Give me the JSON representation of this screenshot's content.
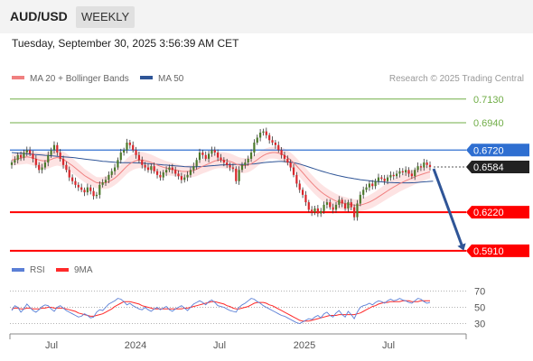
{
  "header": {
    "symbol": "AUD/USD",
    "timeframe": "WEEKLY",
    "datetime": "Tuesday, September 30, 2025 3:56:39 AM CET"
  },
  "legend": {
    "ma20": "MA 20 + Bollinger Bands",
    "ma50": "MA 50",
    "credit": "Research © 2025 Trading Central"
  },
  "rsi_legend": {
    "rsi": "RSI",
    "ma9": "9MA"
  },
  "colors": {
    "bull": "#4c7a2c",
    "bear": "#d9262b",
    "ma20": "#f08080",
    "band": "#fde3e3",
    "ma50": "#2f5597",
    "support": "#ff0000",
    "resistance_green": "#70ad47",
    "pivot_blue": "#2f6fd1",
    "price_tag": "#222222",
    "arrow": "#2f5597",
    "rsi_line": "#5b7fd6",
    "rsi_ma": "#ff2a2a"
  },
  "levels": [
    {
      "value": 0.713,
      "label": "0.7130",
      "kind": "resistance_green"
    },
    {
      "value": 0.694,
      "label": "0.6940",
      "kind": "resistance_green"
    },
    {
      "value": 0.672,
      "label": "0.6720",
      "kind": "pivot_blue"
    },
    {
      "value": 0.6584,
      "label": "0.6584",
      "kind": "price_tag"
    },
    {
      "value": 0.622,
      "label": "0.6220",
      "kind": "support"
    },
    {
      "value": 0.591,
      "label": "0.5910",
      "kind": "support"
    }
  ],
  "chart_data": [
    {
      "type": "candlestick",
      "title": "AUD/USD WEEKLY",
      "x_tick_labels": [
        "Jul",
        "2024",
        "Jul",
        "2025",
        "Jul"
      ],
      "ylim": [
        0.588,
        0.723
      ],
      "last_price": 0.6584,
      "projection": {
        "from": 0.6584,
        "to": 0.591
      },
      "closes": [
        0.662,
        0.664,
        0.668,
        0.666,
        0.67,
        0.672,
        0.669,
        0.665,
        0.66,
        0.656,
        0.658,
        0.662,
        0.668,
        0.672,
        0.676,
        0.67,
        0.665,
        0.66,
        0.656,
        0.65,
        0.647,
        0.644,
        0.642,
        0.64,
        0.638,
        0.642,
        0.639,
        0.635,
        0.636,
        0.644,
        0.646,
        0.648,
        0.652,
        0.655,
        0.658,
        0.664,
        0.67,
        0.672,
        0.678,
        0.676,
        0.672,
        0.668,
        0.664,
        0.66,
        0.658,
        0.656,
        0.659,
        0.655,
        0.652,
        0.65,
        0.654,
        0.656,
        0.658,
        0.656,
        0.653,
        0.651,
        0.648,
        0.65,
        0.652,
        0.656,
        0.659,
        0.664,
        0.67,
        0.668,
        0.665,
        0.669,
        0.672,
        0.67,
        0.666,
        0.664,
        0.662,
        0.66,
        0.658,
        0.657,
        0.647,
        0.656,
        0.66,
        0.662,
        0.665,
        0.67,
        0.678,
        0.682,
        0.686,
        0.687,
        0.684,
        0.68,
        0.678,
        0.676,
        0.672,
        0.668,
        0.665,
        0.662,
        0.658,
        0.652,
        0.645,
        0.64,
        0.636,
        0.63,
        0.624,
        0.622,
        0.625,
        0.621,
        0.623,
        0.628,
        0.63,
        0.626,
        0.624,
        0.628,
        0.632,
        0.629,
        0.625,
        0.63,
        0.626,
        0.618,
        0.629,
        0.636,
        0.64,
        0.642,
        0.645,
        0.643,
        0.647,
        0.65,
        0.649,
        0.647,
        0.65,
        0.652,
        0.651,
        0.653,
        0.655,
        0.654,
        0.656,
        0.653,
        0.651,
        0.656,
        0.659,
        0.658,
        0.662,
        0.66,
        0.6584
      ],
      "ma20": [
        0.664,
        0.6645,
        0.665,
        0.6655,
        0.666,
        0.6665,
        0.6662,
        0.6655,
        0.6648,
        0.664,
        0.6635,
        0.6632,
        0.6636,
        0.6645,
        0.6655,
        0.666,
        0.6655,
        0.6645,
        0.663,
        0.6612,
        0.6595,
        0.6575,
        0.6555,
        0.6535,
        0.6515,
        0.65,
        0.6485,
        0.647,
        0.6458,
        0.6455,
        0.6455,
        0.6458,
        0.6465,
        0.6478,
        0.6495,
        0.6515,
        0.654,
        0.6565,
        0.659,
        0.661,
        0.6625,
        0.6635,
        0.664,
        0.664,
        0.6635,
        0.6628,
        0.662,
        0.661,
        0.66,
        0.659,
        0.6582,
        0.6575,
        0.657,
        0.6565,
        0.656,
        0.6555,
        0.655,
        0.6548,
        0.6548,
        0.655,
        0.6556,
        0.6565,
        0.6578,
        0.659,
        0.66,
        0.661,
        0.6622,
        0.6632,
        0.6638,
        0.664,
        0.6638,
        0.6634,
        0.6628,
        0.662,
        0.6608,
        0.66,
        0.6595,
        0.6595,
        0.66,
        0.661,
        0.6625,
        0.6642,
        0.666,
        0.6676,
        0.6688,
        0.6696,
        0.67,
        0.67,
        0.6696,
        0.6688,
        0.6676,
        0.666,
        0.664,
        0.6618,
        0.6592,
        0.6565,
        0.6538,
        0.651,
        0.6482,
        0.6455,
        0.643,
        0.6406,
        0.6385,
        0.6366,
        0.635,
        0.6335,
        0.6322,
        0.631,
        0.6302,
        0.6296,
        0.629,
        0.6286,
        0.6282,
        0.6278,
        0.6276,
        0.6278,
        0.6284,
        0.6292,
        0.6302,
        0.6314,
        0.6328,
        0.6344,
        0.636,
        0.6376,
        0.6392,
        0.6408,
        0.6422,
        0.6436,
        0.645,
        0.6462,
        0.6474,
        0.6484,
        0.6494,
        0.6504,
        0.6514,
        0.6522,
        0.653,
        0.6538,
        0.6545
      ],
      "ma50": [
        0.67,
        0.6698,
        0.6696,
        0.6694,
        0.6692,
        0.669,
        0.6688,
        0.6686,
        0.6684,
        0.6682,
        0.668,
        0.6678,
        0.6676,
        0.6674,
        0.6672,
        0.667,
        0.6668,
        0.6666,
        0.6664,
        0.6662,
        0.666,
        0.6657,
        0.6654,
        0.6651,
        0.6648,
        0.6645,
        0.6642,
        0.6639,
        0.6636,
        0.6633,
        0.663,
        0.6628,
        0.6626,
        0.6624,
        0.6622,
        0.662,
        0.6619,
        0.6618,
        0.6618,
        0.6618,
        0.6618,
        0.6617,
        0.6616,
        0.6615,
        0.6613,
        0.6611,
        0.6609,
        0.6607,
        0.6605,
        0.6603,
        0.6601,
        0.6599,
        0.6597,
        0.6595,
        0.6593,
        0.6591,
        0.6589,
        0.6587,
        0.6586,
        0.6585,
        0.6585,
        0.6586,
        0.6587,
        0.6588,
        0.659,
        0.6592,
        0.6594,
        0.6596,
        0.6598,
        0.66,
        0.6601,
        0.6602,
        0.6603,
        0.6604,
        0.6604,
        0.6604,
        0.6604,
        0.6604,
        0.6605,
        0.6607,
        0.6609,
        0.6612,
        0.6615,
        0.6618,
        0.6621,
        0.6623,
        0.6625,
        0.6627,
        0.6628,
        0.6628,
        0.6627,
        0.6625,
        0.6622,
        0.6618,
        0.6613,
        0.6607,
        0.66,
        0.6592,
        0.6584,
        0.6576,
        0.6568,
        0.656,
        0.6552,
        0.6545,
        0.6538,
        0.6531,
        0.6525,
        0.6519,
        0.6513,
        0.6508,
        0.6503,
        0.6498,
        0.6494,
        0.649,
        0.6486,
        0.6482,
        0.6479,
        0.6476,
        0.6473,
        0.647,
        0.6468,
        0.6466,
        0.6464,
        0.6462,
        0.646,
        0.6459,
        0.6458,
        0.6457,
        0.6456,
        0.6456,
        0.6456,
        0.6456,
        0.6457,
        0.6458,
        0.646,
        0.6462,
        0.6464,
        0.6466,
        0.6468,
        0.647
      ]
    },
    {
      "type": "line",
      "title": "RSI",
      "ylim": [
        25,
        75
      ],
      "y_tick_labels": [
        "70",
        "50",
        "30"
      ],
      "series_names": [
        "RSI",
        "9MA"
      ],
      "rsi": [
        46,
        52,
        50,
        44,
        48,
        54,
        50,
        46,
        44,
        47,
        51,
        53,
        52,
        48,
        45,
        50,
        52,
        49,
        46,
        44,
        42,
        40,
        38,
        39,
        42,
        40,
        37,
        38,
        44,
        47,
        46,
        50,
        54,
        56,
        58,
        61,
        60,
        57,
        53,
        55,
        52,
        50,
        48,
        47,
        50,
        47,
        45,
        48,
        50,
        47,
        49,
        51,
        47,
        45,
        48,
        50,
        52,
        49,
        46,
        50,
        54,
        56,
        58,
        56,
        53,
        57,
        59,
        56,
        52,
        51,
        50,
        48,
        46,
        45,
        44,
        50,
        53,
        55,
        58,
        61,
        60,
        57,
        55,
        52,
        50,
        48,
        46,
        44,
        42,
        40,
        39,
        37,
        35,
        33,
        31,
        30,
        32,
        34,
        36,
        35,
        38,
        40,
        37,
        42,
        44,
        40,
        38,
        43,
        46,
        41,
        38,
        45,
        41,
        36,
        44,
        50,
        52,
        53,
        55,
        53,
        56,
        58,
        57,
        55,
        58,
        60,
        58,
        59,
        61,
        59,
        58,
        56,
        55,
        58,
        61,
        60,
        57,
        55,
        56
      ],
      "rsi_ma": [
        48,
        49,
        49,
        48,
        48,
        49,
        49,
        48,
        48,
        48,
        49,
        49,
        50,
        50,
        49,
        49,
        49,
        49,
        48,
        47,
        46,
        45,
        43,
        42,
        41,
        40,
        39,
        39,
        40,
        41,
        42,
        44,
        46,
        48,
        51,
        53,
        55,
        57,
        57,
        57,
        56,
        55,
        54,
        52,
        51,
        50,
        49,
        48,
        48,
        48,
        48,
        48,
        48,
        48,
        48,
        48,
        48,
        49,
        49,
        50,
        51,
        52,
        53,
        54,
        55,
        56,
        57,
        57,
        56,
        55,
        54,
        52,
        51,
        49,
        48,
        48,
        49,
        50,
        51,
        53,
        55,
        56,
        56,
        56,
        55,
        53,
        52,
        50,
        48,
        46,
        44,
        42,
        40,
        38,
        36,
        34,
        33,
        33,
        33,
        34,
        35,
        36,
        37,
        38,
        39,
        40,
        40,
        40,
        41,
        41,
        41,
        41,
        41,
        41,
        42,
        43,
        45,
        47,
        49,
        51,
        52,
        54,
        55,
        56,
        56,
        57,
        57,
        57,
        57,
        58,
        58,
        58,
        57,
        57,
        57,
        58,
        58,
        58,
        58
      ]
    }
  ]
}
